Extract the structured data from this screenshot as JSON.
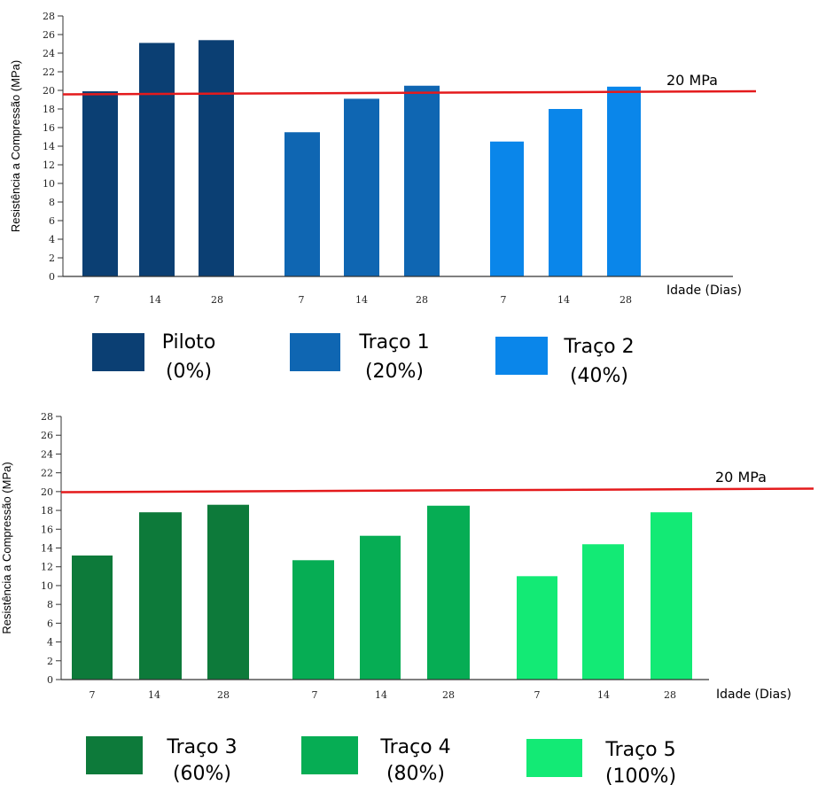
{
  "chart_data": [
    {
      "type": "bar",
      "ylabel": "Resistência a Compressão (MPa)",
      "xlabel": "Idade (Dias)",
      "ylim": [
        0,
        28
      ],
      "yticks": [
        0,
        2,
        4,
        6,
        8,
        10,
        12,
        14,
        16,
        18,
        20,
        22,
        24,
        26,
        28
      ],
      "reference_line": {
        "value": 20,
        "label": "20 MPa",
        "color": "#e41a1c"
      },
      "groups": [
        {
          "name": "Piloto",
          "sub": "(0%)",
          "color": "#0b3f73",
          "categories": [
            "7",
            "14",
            "28"
          ],
          "values": [
            19.9,
            25.1,
            25.4
          ]
        },
        {
          "name": "Traço 1",
          "sub": "(20%)",
          "color": "#0f66b2",
          "categories": [
            "7",
            "14",
            "28"
          ],
          "values": [
            15.5,
            19.1,
            20.5
          ]
        },
        {
          "name": "Traço 2",
          "sub": "(40%)",
          "color": "#0a86ea",
          "categories": [
            "7",
            "14",
            "28"
          ],
          "values": [
            14.5,
            18.0,
            20.4
          ]
        }
      ]
    },
    {
      "type": "bar",
      "ylabel": "Resistência a Compressão (MPa)",
      "xlabel": "Idade (Dias)",
      "ylim": [
        0,
        28
      ],
      "yticks": [
        0,
        2,
        4,
        6,
        8,
        10,
        12,
        14,
        16,
        18,
        20,
        22,
        24,
        26,
        28
      ],
      "reference_line": {
        "value": 20,
        "label": "20 MPa",
        "color": "#e41a1c"
      },
      "groups": [
        {
          "name": "Traço 3",
          "sub": "(60%)",
          "color": "#0d7a3a",
          "categories": [
            "7",
            "14",
            "28"
          ],
          "values": [
            13.2,
            17.8,
            18.6
          ]
        },
        {
          "name": "Traço 4",
          "sub": "(80%)",
          "color": "#06ad54",
          "categories": [
            "7",
            "14",
            "28"
          ],
          "values": [
            12.7,
            15.3,
            18.5
          ]
        },
        {
          "name": "Traço 5",
          "sub": "(100%)",
          "color": "#13ea75",
          "categories": [
            "7",
            "14",
            "28"
          ],
          "values": [
            11.0,
            14.4,
            17.8
          ]
        }
      ]
    }
  ]
}
